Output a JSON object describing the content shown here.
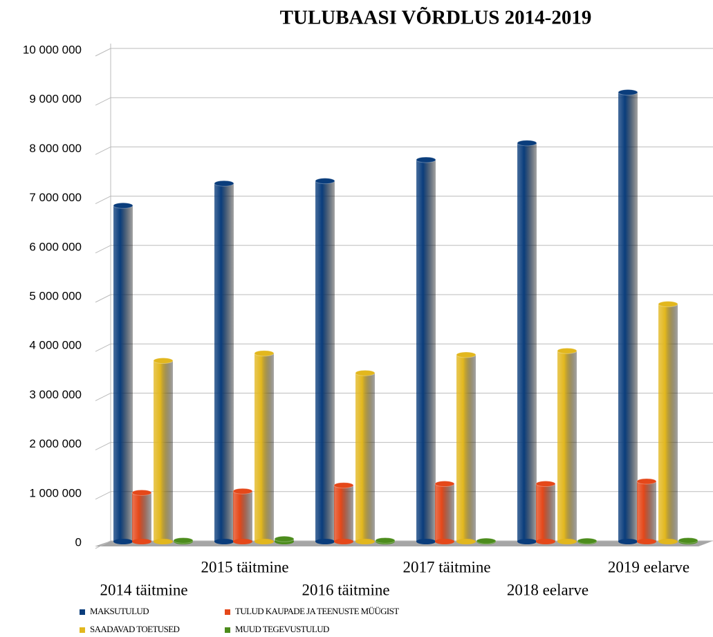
{
  "chart_data": {
    "type": "bar3d",
    "title": "TULUBAASI VÕRDLUS 2014-2019",
    "categories": [
      "2014 täitmine",
      "2015 täitmine",
      "2016 täitmine",
      "2017 täitmine",
      "2018 eelarve",
      "2019 eelarve"
    ],
    "series": [
      {
        "name": "MAKSUTULUD",
        "color": "#0a3d7c",
        "values": [
          6850000,
          7300000,
          7350000,
          7780000,
          8120000,
          9150000
        ]
      },
      {
        "name": "TULUD KAUPADE JA TEENUSTE MÜÜGIST",
        "color": "#e5481a",
        "values": [
          1020000,
          1050000,
          1170000,
          1200000,
          1200000,
          1250000
        ]
      },
      {
        "name": "SAADAVAD TOETUSED",
        "color": "#e2b71e",
        "values": [
          3700000,
          3850000,
          3450000,
          3820000,
          3900000,
          4850000
        ]
      },
      {
        "name": "MUUD TEGEVUSTULUD",
        "color": "#4c8c1c",
        "values": [
          50000,
          80000,
          50000,
          40000,
          40000,
          50000
        ]
      }
    ],
    "ylim": [
      0,
      10000000
    ],
    "yticks": [
      0,
      {
        "value": 1000000,
        "label": "1 000 000"
      },
      {
        "value": 2000000,
        "label": "2 000 000"
      },
      {
        "value": 3000000,
        "label": "3 000 000"
      },
      {
        "value": 4000000,
        "label": "4 000 000"
      },
      {
        "value": 5000000,
        "label": "5 000 000"
      },
      {
        "value": 6000000,
        "label": "6 000 000"
      },
      {
        "value": 7000000,
        "label": "7 000 000"
      },
      {
        "value": 8000000,
        "label": "8 000 000"
      },
      {
        "value": 9000000,
        "label": "9 000 000"
      },
      {
        "value": 10000000,
        "label": "10 000 000"
      }
    ],
    "grid": true,
    "legend": "bottom"
  }
}
